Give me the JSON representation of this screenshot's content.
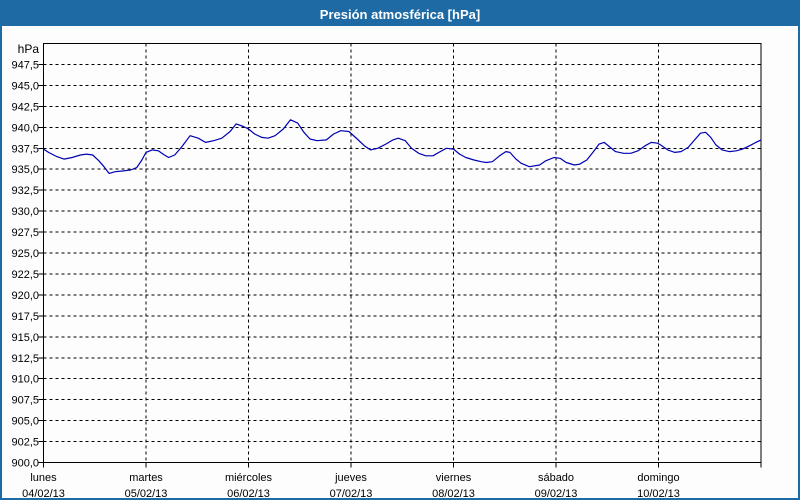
{
  "window": {
    "title": "Presión atmosférica [hPa]"
  },
  "chart_data": {
    "type": "line",
    "title": "Presión atmosférica [hPa]",
    "y_axis": {
      "unit_label": "hPa",
      "min": 900,
      "max": 950,
      "tick_step": 2.5,
      "decimal_separator": ",",
      "tick_labels_top_to_bottom": [
        "947,5",
        "945,0",
        "942,5",
        "940,0",
        "937,5",
        "935,0",
        "932,5",
        "930,0",
        "927,5",
        "925,0",
        "922,5",
        "920,0",
        "917,5",
        "915,0",
        "912,5",
        "910,0",
        "907,5",
        "905,0",
        "902,5",
        "900,0"
      ]
    },
    "x_axis": {
      "span_days": 7,
      "days": [
        {
          "weekday": "lunes",
          "date": "04/02/13"
        },
        {
          "weekday": "martes",
          "date": "05/02/13"
        },
        {
          "weekday": "miércoles",
          "date": "06/02/13"
        },
        {
          "weekday": "jueves",
          "date": "07/02/13"
        },
        {
          "weekday": "viernes",
          "date": "08/02/13"
        },
        {
          "weekday": "sábado",
          "date": "09/02/13"
        },
        {
          "weekday": "domingo",
          "date": "10/02/13"
        }
      ]
    },
    "grid": {
      "horizontal_step_hpa": 2.5,
      "vertical_step_days": 1,
      "style": "dashed",
      "visible": true
    },
    "legend": {
      "visible": false
    },
    "colors": {
      "titlebar": "#1d6aa5",
      "window_border": "#1d6aa5",
      "line": "#0000b3",
      "grid": "#000000",
      "axis": "#000000",
      "background": "#fdfdfd",
      "title_text": "#ffffff",
      "label_text": "#000000"
    },
    "series": [
      {
        "name": "Presión atmosférica",
        "unit": "hPa",
        "x_unit": "days_from_start",
        "points": [
          [
            0,
            937.4
          ],
          [
            0.05,
            937.0
          ],
          [
            0.13,
            936.5
          ],
          [
            0.2,
            936.2
          ],
          [
            0.28,
            936.4
          ],
          [
            0.36,
            936.7
          ],
          [
            0.42,
            936.8
          ],
          [
            0.48,
            936.7
          ],
          [
            0.54,
            936.0
          ],
          [
            0.59,
            935.3
          ],
          [
            0.64,
            934.5
          ],
          [
            0.7,
            934.7
          ],
          [
            0.78,
            934.8
          ],
          [
            0.85,
            934.9
          ],
          [
            0.91,
            935.2
          ],
          [
            0.96,
            936.1
          ],
          [
            1,
            937.0
          ],
          [
            1.06,
            937.3
          ],
          [
            1.12,
            937.2
          ],
          [
            1.18,
            936.7
          ],
          [
            1.22,
            936.4
          ],
          [
            1.28,
            936.7
          ],
          [
            1.35,
            937.7
          ],
          [
            1.43,
            939.0
          ],
          [
            1.51,
            938.7
          ],
          [
            1.58,
            938.2
          ],
          [
            1.66,
            938.4
          ],
          [
            1.74,
            938.7
          ],
          [
            1.82,
            939.5
          ],
          [
            1.88,
            940.4
          ],
          [
            1.95,
            940.1
          ],
          [
            2,
            939.8
          ],
          [
            2.06,
            939.2
          ],
          [
            2.13,
            938.8
          ],
          [
            2.19,
            938.7
          ],
          [
            2.26,
            939.0
          ],
          [
            2.34,
            939.8
          ],
          [
            2.41,
            940.9
          ],
          [
            2.48,
            940.5
          ],
          [
            2.54,
            939.4
          ],
          [
            2.6,
            938.6
          ],
          [
            2.67,
            938.4
          ],
          [
            2.76,
            938.5
          ],
          [
            2.83,
            939.2
          ],
          [
            2.9,
            939.6
          ],
          [
            2.98,
            939.5
          ],
          [
            3.06,
            938.6
          ],
          [
            3.13,
            937.8
          ],
          [
            3.19,
            937.3
          ],
          [
            3.26,
            937.5
          ],
          [
            3.34,
            938.0
          ],
          [
            3.41,
            938.5
          ],
          [
            3.46,
            938.7
          ],
          [
            3.53,
            938.4
          ],
          [
            3.59,
            937.5
          ],
          [
            3.66,
            936.9
          ],
          [
            3.73,
            936.6
          ],
          [
            3.8,
            936.6
          ],
          [
            3.87,
            937.1
          ],
          [
            3.93,
            937.5
          ],
          [
            4,
            937.4
          ],
          [
            4.06,
            936.8
          ],
          [
            4.12,
            936.4
          ],
          [
            4.2,
            936.1
          ],
          [
            4.27,
            935.9
          ],
          [
            4.32,
            935.8
          ],
          [
            4.38,
            935.9
          ],
          [
            4.45,
            936.6
          ],
          [
            4.51,
            937.1
          ],
          [
            4.55,
            937.0
          ],
          [
            4.61,
            936.2
          ],
          [
            4.66,
            935.7
          ],
          [
            4.74,
            935.3
          ],
          [
            4.84,
            935.5
          ],
          [
            4.9,
            936.0
          ],
          [
            4.98,
            936.4
          ],
          [
            5.04,
            936.3
          ],
          [
            5.1,
            935.8
          ],
          [
            5.18,
            935.5
          ],
          [
            5.23,
            935.6
          ],
          [
            5.3,
            936.1
          ],
          [
            5.36,
            937.0
          ],
          [
            5.42,
            938.0
          ],
          [
            5.47,
            938.2
          ],
          [
            5.53,
            937.6
          ],
          [
            5.58,
            937.1
          ],
          [
            5.66,
            936.9
          ],
          [
            5.73,
            936.9
          ],
          [
            5.8,
            937.2
          ],
          [
            5.87,
            937.8
          ],
          [
            5.93,
            938.2
          ],
          [
            5.99,
            938.1
          ],
          [
            6.02,
            937.9
          ],
          [
            6.09,
            937.3
          ],
          [
            6.16,
            937.0
          ],
          [
            6.22,
            937.1
          ],
          [
            6.29,
            937.6
          ],
          [
            6.36,
            938.6
          ],
          [
            6.41,
            939.3
          ],
          [
            6.46,
            939.4
          ],
          [
            6.51,
            938.8
          ],
          [
            6.56,
            937.9
          ],
          [
            6.62,
            937.3
          ],
          [
            6.69,
            937.1
          ],
          [
            6.76,
            937.2
          ],
          [
            6.82,
            937.4
          ],
          [
            6.89,
            937.8
          ],
          [
            6.95,
            938.2
          ],
          [
            7,
            938.5
          ]
        ]
      }
    ]
  }
}
